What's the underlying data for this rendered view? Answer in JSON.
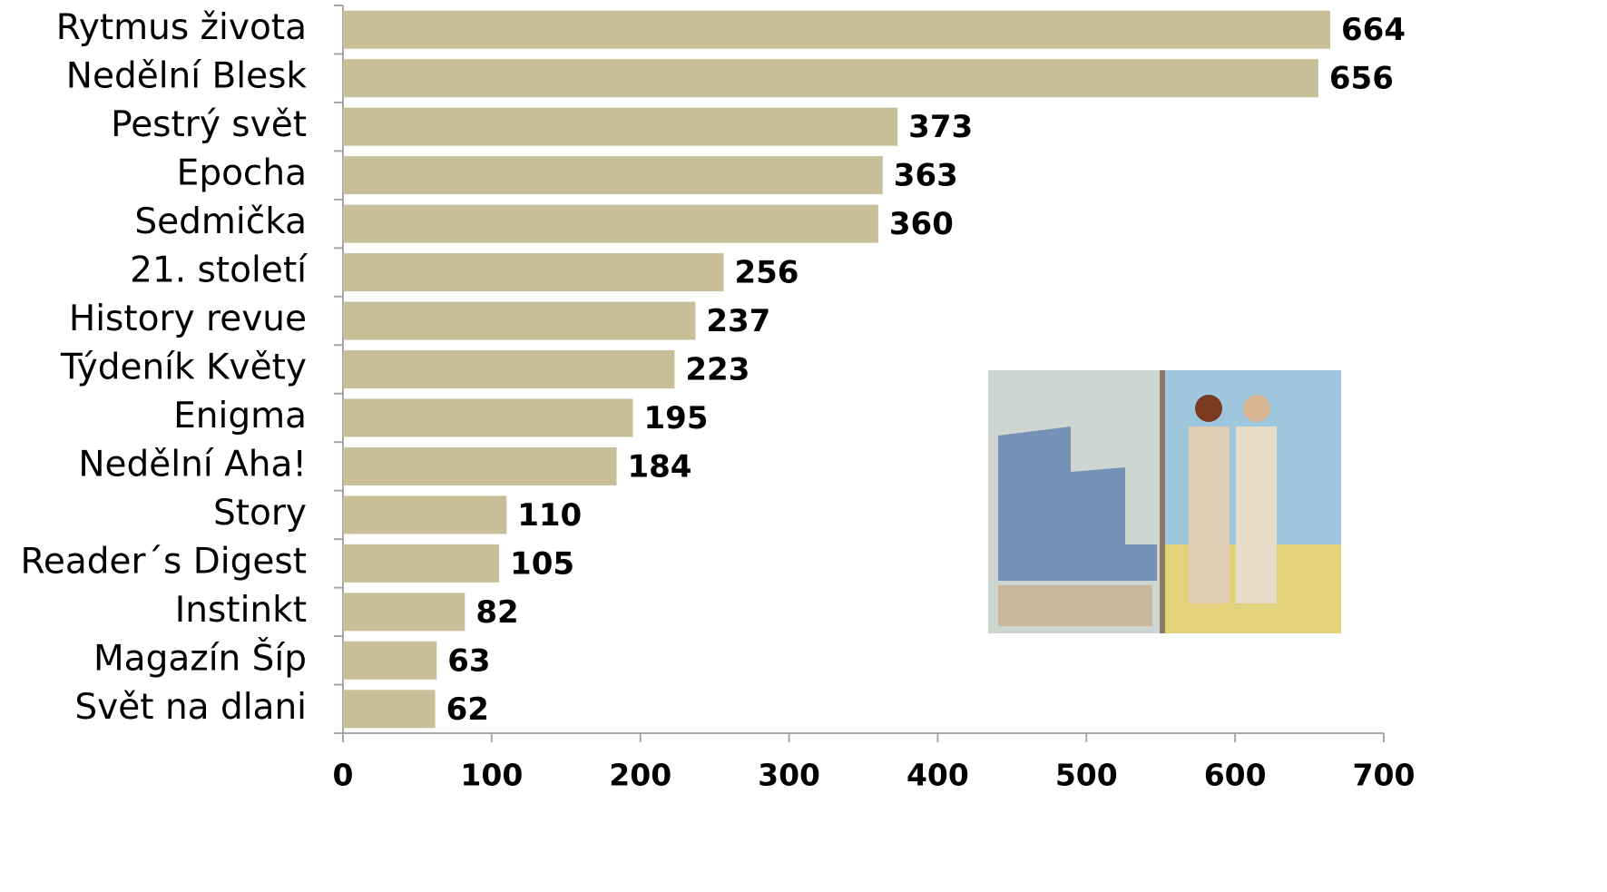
{
  "chart_data": {
    "type": "bar",
    "orientation": "horizontal",
    "categories": [
      "Rytmus života",
      "Nedělní Blesk",
      "Pestrý svět",
      "Epocha",
      "Sedmička",
      "21. století",
      "History revue",
      "Týdeník Květy",
      "Enigma",
      "Nedělní Aha!",
      "Story",
      "Reader´s Digest",
      "Instinkt",
      "Magazín Šíp",
      "Svět na dlani"
    ],
    "values": [
      664,
      656,
      373,
      363,
      360,
      256,
      237,
      223,
      195,
      184,
      110,
      105,
      82,
      63,
      62
    ],
    "color": "#c8bf99",
    "xlim": [
      0,
      700
    ],
    "xticks": [
      0,
      100,
      200,
      300,
      400,
      500,
      600,
      700
    ],
    "grid": false
  }
}
